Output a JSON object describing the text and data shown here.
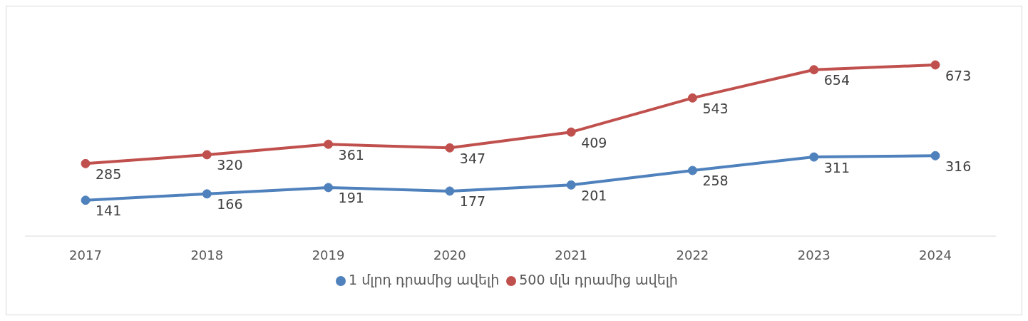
{
  "chart_data": {
    "type": "line",
    "categories": [
      "2017",
      "2018",
      "2019",
      "2020",
      "2021",
      "2022",
      "2023",
      "2024"
    ],
    "series": [
      {
        "name": "1 մլրդ դրամից ավելի",
        "color": "#4f81bd",
        "values": [
          141,
          166,
          191,
          177,
          201,
          258,
          311,
          316
        ]
      },
      {
        "name": "500 մլն դրամից ավելի",
        "color": "#c0504d",
        "values": [
          285,
          320,
          361,
          347,
          409,
          543,
          654,
          673
        ]
      }
    ],
    "tick_labels": "x",
    "data_labels": true,
    "marker": "circle",
    "legend": "bottom",
    "grid": false
  }
}
